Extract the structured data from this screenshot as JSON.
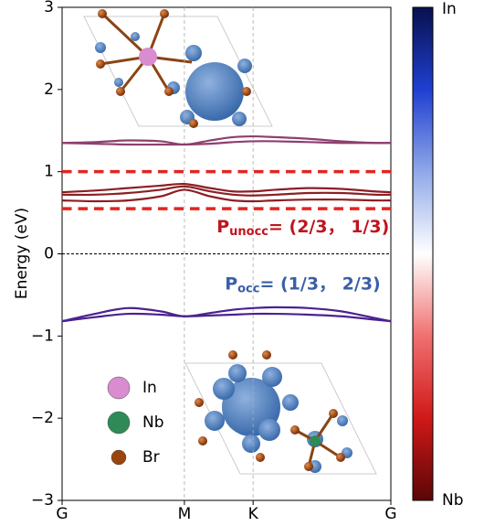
{
  "chart_data": {
    "type": "line",
    "y_label": "Energy (eV)",
    "xlim": [
      0,
      1
    ],
    "xticks": [
      {
        "value": 0,
        "label": "G"
      },
      {
        "value": 0.372,
        "label": "M"
      },
      {
        "value": 0.581,
        "label": "K"
      },
      {
        "value": 1,
        "label": "G"
      }
    ],
    "ylim": [
      -3,
      3
    ],
    "yticks": [
      {
        "value": -3,
        "label": "−3"
      },
      {
        "value": -2,
        "label": "−2"
      },
      {
        "value": -1,
        "label": "−1"
      },
      0,
      1,
      2,
      3
    ],
    "xgrid": true,
    "x": [
      0,
      0.1,
      0.2,
      0.3,
      0.372,
      0.45,
      0.52,
      0.581,
      0.65,
      0.75,
      0.85,
      0.95,
      1
    ],
    "series": [
      {
        "color": "#8e3f6e",
        "values": [
          1.35,
          1.34,
          1.33,
          1.33,
          1.33,
          1.34,
          1.36,
          1.37,
          1.37,
          1.36,
          1.35,
          1.35,
          1.35
        ]
      },
      {
        "color": "#8e3f6e",
        "values": [
          1.35,
          1.36,
          1.38,
          1.37,
          1.33,
          1.38,
          1.42,
          1.43,
          1.42,
          1.4,
          1.37,
          1.35,
          1.35
        ]
      },
      {
        "color": "#8b1f24",
        "values": [
          0.75,
          0.77,
          0.8,
          0.83,
          0.85,
          0.8,
          0.76,
          0.76,
          0.78,
          0.8,
          0.79,
          0.76,
          0.75
        ]
      },
      {
        "color": "#8b1f24",
        "values": [
          0.72,
          0.72,
          0.74,
          0.78,
          0.82,
          0.76,
          0.72,
          0.71,
          0.72,
          0.74,
          0.74,
          0.72,
          0.72
        ]
      },
      {
        "color": "#8b1f24",
        "values": [
          0.65,
          0.64,
          0.65,
          0.7,
          0.78,
          0.7,
          0.65,
          0.64,
          0.65,
          0.66,
          0.66,
          0.65,
          0.65
        ]
      },
      {
        "color": "#4a2290",
        "values": [
          -0.82,
          -0.73,
          -0.66,
          -0.7,
          -0.76,
          -0.72,
          -0.68,
          -0.66,
          -0.65,
          -0.66,
          -0.7,
          -0.78,
          -0.82
        ]
      },
      {
        "color": "#4a2290",
        "values": [
          -0.82,
          -0.77,
          -0.73,
          -0.74,
          -0.76,
          -0.75,
          -0.74,
          -0.73,
          -0.73,
          -0.74,
          -0.76,
          -0.8,
          -0.82
        ]
      }
    ],
    "ref_lines": [
      {
        "y": 1.0,
        "color": "#e52420",
        "dashed": true,
        "width": 3.5
      },
      {
        "y": 0.55,
        "color": "#e52420",
        "dashed": true,
        "width": 3.5
      },
      {
        "y": 0,
        "color": "#000000",
        "dashed": true,
        "width": 1
      }
    ],
    "annotations": [
      {
        "parts": [
          "P",
          "unocc",
          "= (2/3， 1/3)"
        ],
        "color": "#c0141e",
        "x": 0.47,
        "y": 0.33
      },
      {
        "parts": [
          "P",
          "occ",
          "= (1/3， 2/3)"
        ],
        "color": "#3a5fa8",
        "x": 0.495,
        "y": -0.37
      }
    ],
    "legend": [
      {
        "label": "In",
        "color": "#d98ccf"
      },
      {
        "label": "Nb",
        "color": "#2e8b57"
      },
      {
        "label": "Br",
        "color": "#9a4410"
      }
    ],
    "colorbar": {
      "top_label": "In",
      "bottom_label": "Nb",
      "colors": [
        "#08104e",
        "#1f3fd0",
        "#8fa8e8",
        "#ffffff",
        "#f07070",
        "#d01818",
        "#5a0606"
      ]
    }
  }
}
